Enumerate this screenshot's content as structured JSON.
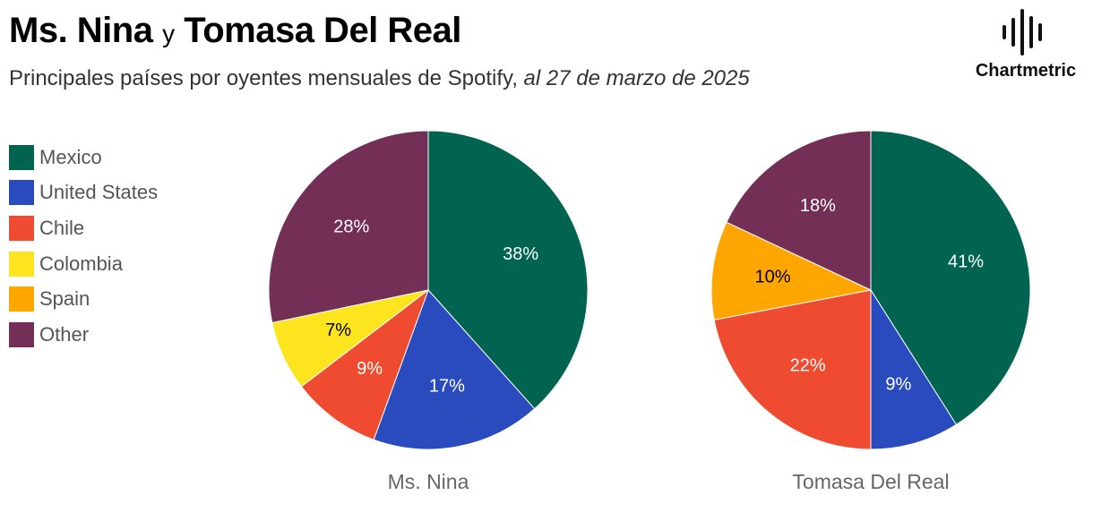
{
  "header": {
    "title_a": "Ms. Nina",
    "title_conj": "y",
    "title_b": "Tomasa Del Real",
    "subtitle_main": "Principales países por oyentes mensuales de Spotify,",
    "subtitle_date": "al 27 de marzo de 2025"
  },
  "logo": {
    "text": "Chartmetric",
    "icon": "soundwave-bars-icon"
  },
  "legend": [
    {
      "label": "Mexico",
      "color": "#006450"
    },
    {
      "label": "United States",
      "color": "#2a4bbd"
    },
    {
      "label": "Chile",
      "color": "#ee4b31"
    },
    {
      "label": "Colombia",
      "color": "#fce51e"
    },
    {
      "label": "Spain",
      "color": "#ffa600"
    },
    {
      "label": "Other",
      "color": "#732f56"
    }
  ],
  "chart_data": [
    {
      "type": "pie",
      "caption": "Ms. Nina",
      "slices": [
        {
          "label": "Mexico",
          "value": 38,
          "display": "38%",
          "color": "#006450",
          "text_color": "#ffffff"
        },
        {
          "label": "United States",
          "value": 17,
          "display": "17%",
          "color": "#2a4bbd",
          "text_color": "#ffffff"
        },
        {
          "label": "Chile",
          "value": 9,
          "display": "9%",
          "color": "#ee4b31",
          "text_color": "#ffffff"
        },
        {
          "label": "Colombia",
          "value": 7,
          "display": "7%",
          "color": "#fce51e",
          "text_color": "#000000"
        },
        {
          "label": "Other",
          "value": 28,
          "display": "28%",
          "color": "#732f56",
          "text_color": "#ffffff"
        }
      ]
    },
    {
      "type": "pie",
      "caption": "Tomasa Del Real",
      "slices": [
        {
          "label": "Mexico",
          "value": 41,
          "display": "41%",
          "color": "#006450",
          "text_color": "#ffffff"
        },
        {
          "label": "United States",
          "value": 9,
          "display": "9%",
          "color": "#2a4bbd",
          "text_color": "#ffffff"
        },
        {
          "label": "Chile",
          "value": 22,
          "display": "22%",
          "color": "#ee4b31",
          "text_color": "#ffffff"
        },
        {
          "label": "Spain",
          "value": 10,
          "display": "10%",
          "color": "#ffa600",
          "text_color": "#000000"
        },
        {
          "label": "Other",
          "value": 18,
          "display": "18%",
          "color": "#732f56",
          "text_color": "#ffffff"
        }
      ]
    }
  ]
}
